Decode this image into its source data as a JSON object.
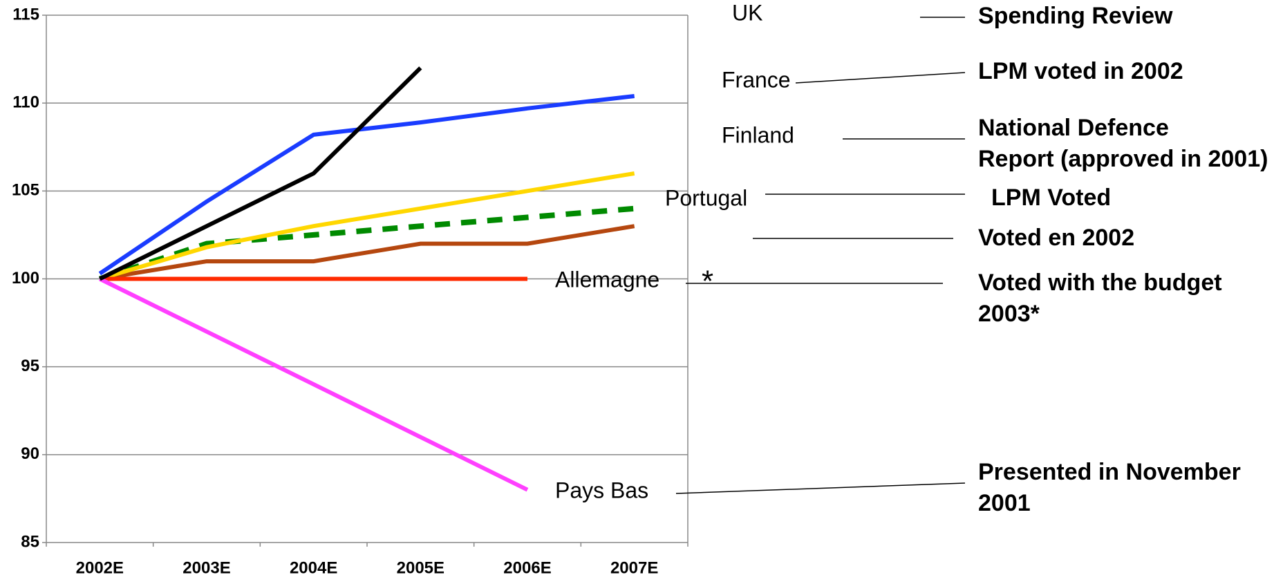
{
  "chart_data": {
    "type": "line",
    "categories": [
      "2002E",
      "2003E",
      "2004E",
      "2005E",
      "2006E",
      "2007E"
    ],
    "ylim": [
      85,
      115
    ],
    "yticks": [
      85,
      90,
      95,
      100,
      105,
      110,
      115
    ],
    "grid": true,
    "series": [
      {
        "name": "UK",
        "color": "#000000",
        "values": [
          100,
          103,
          106,
          112,
          null,
          null
        ],
        "note": [
          "Spending Review"
        ]
      },
      {
        "name": "France",
        "color": "#1a3cff",
        "values": [
          100.3,
          104.4,
          108.2,
          108.9,
          109.7,
          110.4
        ],
        "note": [
          "LPM voted in 2002"
        ]
      },
      {
        "name": "Finland",
        "color": "#ffd700",
        "values": [
          100,
          101.8,
          103,
          104,
          105,
          106
        ],
        "note": [
          "National Defence",
          "Report (approved in 2001)"
        ]
      },
      {
        "name": "Portugal",
        "color": "#008a00",
        "dashed": true,
        "values": [
          100,
          102,
          102.5,
          103,
          103.5,
          104
        ],
        "note": [
          "LPM Voted"
        ]
      },
      {
        "color": "#b5470f",
        "values": [
          100,
          101,
          101,
          102,
          102,
          103
        ],
        "note": [
          "Voted en 2002"
        ]
      },
      {
        "name": "Allemagne",
        "marker": "*",
        "color": "#ff2a00",
        "values": [
          100,
          100,
          100,
          100,
          100,
          null
        ],
        "note": [
          "Voted with the budget",
          "2003*"
        ]
      },
      {
        "name": "Pays Bas",
        "color": "#ff40ff",
        "values": [
          100,
          97,
          94,
          91,
          88,
          null
        ],
        "note": [
          "Presented in November",
          "2001"
        ]
      }
    ]
  }
}
